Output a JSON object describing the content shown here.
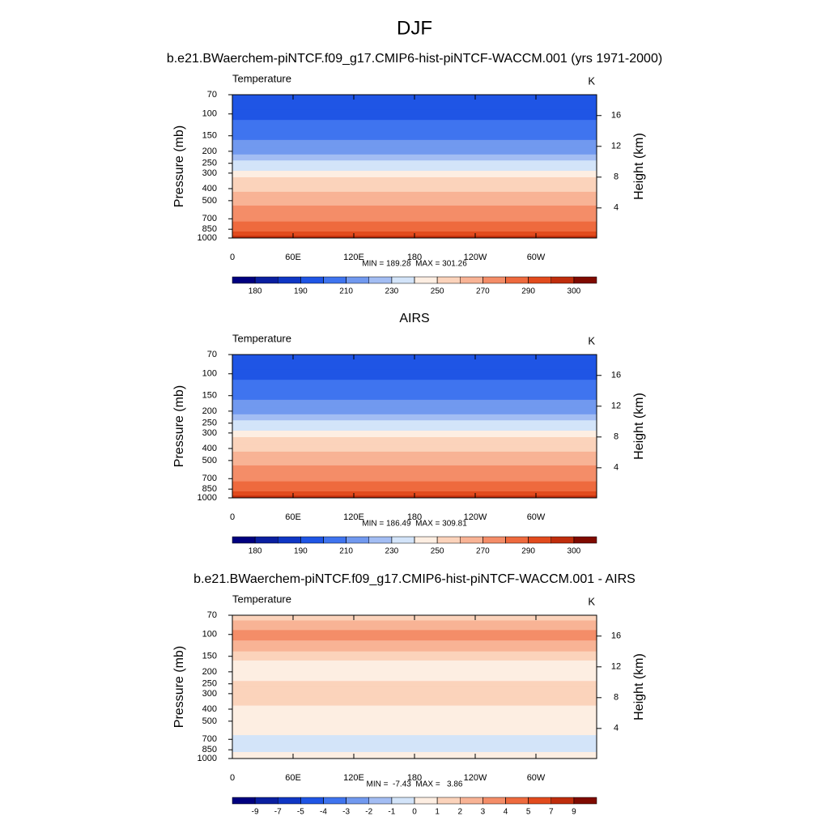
{
  "title": "DJF",
  "chart_data": [
    {
      "type": "contour",
      "title": "b.e21.BWaerchem-piNTCF.f09_g17.CMIP6-hist-piNTCF-WACCM.001 (yrs 1971-2000)",
      "left_label": "Temperature",
      "units": "K",
      "ylabel": "Pressure (mb)",
      "y2label": "Height (km)",
      "stats": "MIN = 189.28  MAX = 301.26",
      "xlim": [
        0,
        360
      ],
      "xticks": [
        0,
        {
          "value": 60,
          "label": "60E"
        },
        {
          "value": 120,
          "label": "120E"
        },
        180,
        {
          "value": 240,
          "label": "120W"
        },
        {
          "value": 300,
          "label": "60W"
        }
      ],
      "ylim": [
        1000,
        70
      ],
      "log_y": true,
      "yticks": [
        70,
        100,
        150,
        200,
        250,
        300,
        400,
        500,
        700,
        850,
        1000
      ],
      "y2ticks": [
        4,
        8,
        12,
        16
      ],
      "y": [
        70,
        85,
        100,
        125,
        150,
        175,
        200,
        225,
        250,
        275,
        300,
        350,
        400,
        450,
        500,
        600,
        700,
        775,
        850,
        925,
        1000
      ],
      "values": [
        198,
        196,
        197,
        203,
        208,
        214,
        219,
        225,
        231,
        237,
        243,
        251,
        257,
        263,
        267,
        273,
        278,
        283,
        287,
        292,
        297
      ],
      "levels": [
        180,
        185,
        190,
        200,
        210,
        220,
        230,
        240,
        250,
        260,
        270,
        280,
        290,
        295,
        300
      ],
      "label_every": 2,
      "colors": [
        "#00007f",
        "#0a1fa0",
        "#0f36c4",
        "#1f55e5",
        "#3f74ef",
        "#7199ef",
        "#a3bdf3",
        "#d3e4f9",
        "#fdeee2",
        "#fbd3bb",
        "#f8b395",
        "#f48d68",
        "#ee6a3e",
        "#e24b1d",
        "#bf2d0c",
        "#7f0a00"
      ]
    },
    {
      "type": "contour",
      "title": "AIRS",
      "left_label": "Temperature",
      "units": "K",
      "ylabel": "Pressure (mb)",
      "y2label": "Height (km)",
      "stats": "MIN = 186.49  MAX = 309.81",
      "xlim": [
        0,
        360
      ],
      "xticks": [
        0,
        {
          "value": 60,
          "label": "60E"
        },
        {
          "value": 120,
          "label": "120E"
        },
        180,
        {
          "value": 240,
          "label": "120W"
        },
        {
          "value": 300,
          "label": "60W"
        }
      ],
      "ylim": [
        1000,
        70
      ],
      "log_y": true,
      "yticks": [
        70,
        100,
        150,
        200,
        250,
        300,
        400,
        500,
        700,
        850,
        1000
      ],
      "y2ticks": [
        4,
        8,
        12,
        16
      ],
      "y": [
        70,
        85,
        100,
        125,
        150,
        175,
        200,
        225,
        250,
        275,
        300,
        350,
        400,
        450,
        500,
        600,
        700,
        775,
        850,
        925,
        1000
      ],
      "values": [
        197,
        194,
        193,
        200,
        206,
        213,
        218,
        224,
        230,
        236,
        242,
        250,
        256,
        262,
        266,
        272,
        277,
        282,
        288,
        293,
        298
      ],
      "levels": [
        180,
        185,
        190,
        200,
        210,
        220,
        230,
        240,
        250,
        260,
        270,
        280,
        290,
        295,
        300
      ],
      "label_every": 2,
      "colors": [
        "#00007f",
        "#0a1fa0",
        "#0f36c4",
        "#1f55e5",
        "#3f74ef",
        "#7199ef",
        "#a3bdf3",
        "#d3e4f9",
        "#fdeee2",
        "#fbd3bb",
        "#f8b395",
        "#f48d68",
        "#ee6a3e",
        "#e24b1d",
        "#bf2d0c",
        "#7f0a00"
      ]
    },
    {
      "type": "contour",
      "title": "b.e21.BWaerchem-piNTCF.f09_g17.CMIP6-hist-piNTCF-WACCM.001 - AIRS",
      "left_label": "Temperature",
      "units": "K",
      "ylabel": "Pressure (mb)",
      "y2label": "Height (km)",
      "stats": "MIN =  -7.43  MAX =   3.86",
      "xlim": [
        0,
        360
      ],
      "xticks": [
        0,
        {
          "value": 60,
          "label": "60E"
        },
        {
          "value": 120,
          "label": "120E"
        },
        180,
        {
          "value": 240,
          "label": "120W"
        },
        {
          "value": 300,
          "label": "60W"
        }
      ],
      "ylim": [
        1000,
        70
      ],
      "log_y": true,
      "yticks": [
        70,
        100,
        150,
        200,
        250,
        300,
        400,
        500,
        700,
        850,
        1000
      ],
      "y2ticks": [
        4,
        8,
        12,
        16
      ],
      "y": [
        70,
        85,
        100,
        125,
        150,
        175,
        200,
        225,
        250,
        275,
        300,
        350,
        400,
        450,
        500,
        600,
        700,
        775,
        850,
        925,
        1000
      ],
      "values": [
        1.5,
        2.5,
        3.5,
        2.5,
        1.5,
        0.8,
        0.6,
        0.7,
        1.2,
        1.3,
        1.1,
        1.0,
        0.8,
        0.6,
        0.5,
        0.4,
        -0.3,
        -0.5,
        -0.4,
        0.3,
        0.5
      ],
      "levels": [
        -9,
        -7,
        -5,
        -4,
        -3,
        -2,
        -1,
        0,
        1,
        2,
        3,
        4,
        5,
        7,
        9
      ],
      "label_every": 1,
      "colors": [
        "#00007f",
        "#0a1fa0",
        "#0f36c4",
        "#1f55e5",
        "#3f74ef",
        "#7199ef",
        "#a3bdf3",
        "#d3e4f9",
        "#fdeee2",
        "#fbd3bb",
        "#f8b395",
        "#f48d68",
        "#ee6a3e",
        "#e24b1d",
        "#bf2d0c",
        "#7f0a00"
      ]
    }
  ]
}
